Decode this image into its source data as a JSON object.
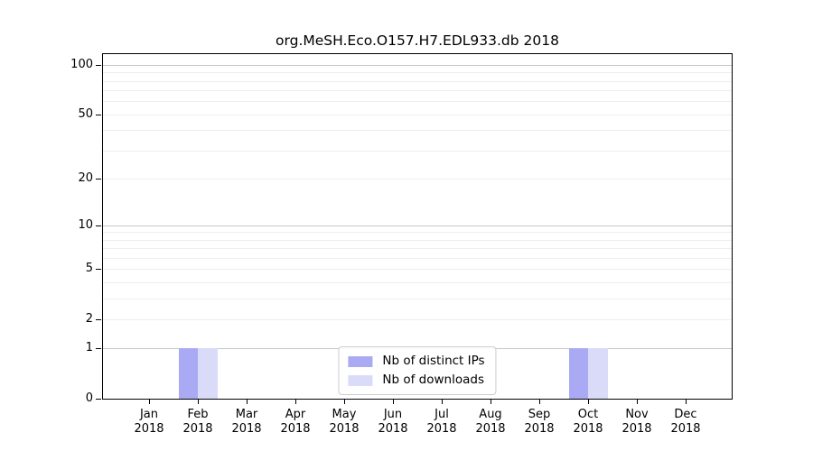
{
  "title": "org.MeSH.Eco.O157.H7.EDL933.db 2018",
  "chart_data": {
    "type": "bar",
    "title": "org.MeSH.Eco.O157.H7.EDL933.db 2018",
    "x_tick_months": [
      "Jan",
      "Feb",
      "Mar",
      "Apr",
      "May",
      "Jun",
      "Jul",
      "Aug",
      "Sep",
      "Oct",
      "Nov",
      "Dec"
    ],
    "x_tick_year": "2018",
    "series": [
      {
        "name": "Nb of distinct IPs",
        "color": "#aaaaf4",
        "values": [
          0,
          1,
          0,
          0,
          0,
          0,
          0,
          0,
          0,
          1,
          0,
          0
        ]
      },
      {
        "name": "Nb of downloads",
        "color": "#dadaf9",
        "values": [
          0,
          1,
          0,
          0,
          0,
          0,
          0,
          0,
          0,
          1,
          0,
          0
        ]
      }
    ],
    "y_scale": "log1p",
    "ylim": [
      0,
      116
    ],
    "y_ticks_labeled": [
      0,
      1,
      2,
      5,
      10,
      20,
      50,
      100
    ],
    "y_gridlines_major": [
      1,
      10,
      100
    ],
    "y_gridlines_minor": [
      2,
      3,
      4,
      5,
      6,
      7,
      8,
      9,
      20,
      30,
      40,
      50,
      60,
      70,
      80,
      90
    ],
    "legend_position": "lower center",
    "colors": {
      "grid_major": "#c6c6c6",
      "grid_minor": "#eeeeee",
      "spine": "#000000",
      "text": "#000000"
    }
  }
}
